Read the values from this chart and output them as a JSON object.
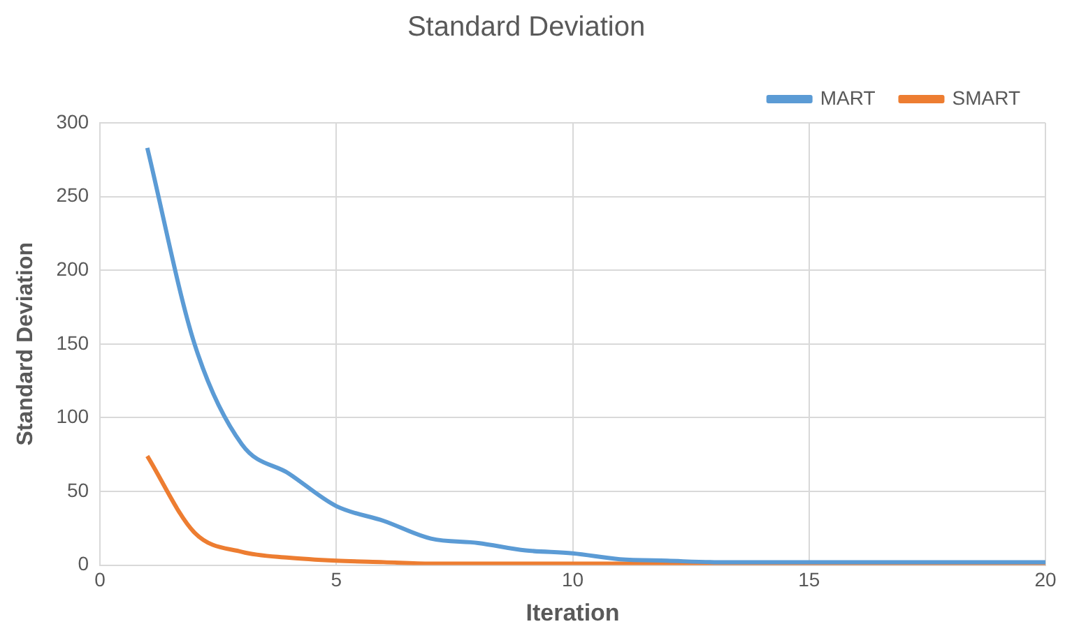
{
  "chart_data": {
    "type": "line",
    "title": "Standard Deviation",
    "xlabel": "Iteration",
    "ylabel": "Standard Deviation",
    "x": [
      1,
      2,
      3,
      4,
      5,
      6,
      7,
      8,
      9,
      10,
      11,
      12,
      13,
      14,
      15,
      16,
      17,
      18,
      19,
      20
    ],
    "series": [
      {
        "name": "MART",
        "color": "#5b9bd5",
        "values": [
          283,
          150,
          82,
          62,
          40,
          30,
          18,
          15,
          10,
          8,
          4,
          3,
          2,
          2,
          2,
          2,
          2,
          2,
          2,
          2
        ]
      },
      {
        "name": "SMART",
        "color": "#ed7d31",
        "values": [
          74,
          22,
          9,
          5,
          3,
          2,
          1,
          1,
          1,
          1,
          1,
          1,
          1,
          1,
          1,
          1,
          1,
          1,
          1,
          1
        ]
      }
    ],
    "xlim": [
      0,
      20
    ],
    "xticks": [
      0,
      5,
      10,
      15,
      20
    ],
    "ylim": [
      0,
      300
    ],
    "yticks": [
      0,
      50,
      100,
      150,
      200,
      250,
      300
    ],
    "grid": true,
    "legend": "top right",
    "marker": "none",
    "line_style": "solid"
  }
}
